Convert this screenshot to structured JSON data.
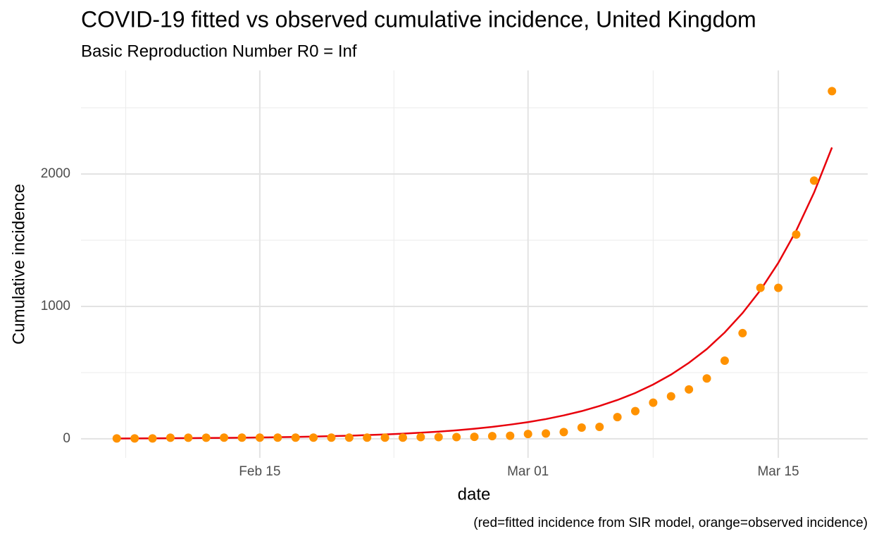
{
  "chart_data": {
    "type": "line",
    "title": "COVID-19 fitted vs observed cumulative incidence, United Kingdom",
    "subtitle": "Basic Reproduction Number R0 = Inf",
    "x_label": "date",
    "y_label": "Cumulative incidence",
    "caption": "(red=fitted incidence from SIR model, orange=observed incidence)",
    "x": [
      "Feb 07",
      "Feb 08",
      "Feb 09",
      "Feb 10",
      "Feb 11",
      "Feb 12",
      "Feb 13",
      "Feb 14",
      "Feb 15",
      "Feb 16",
      "Feb 17",
      "Feb 18",
      "Feb 19",
      "Feb 20",
      "Feb 21",
      "Feb 22",
      "Feb 23",
      "Feb 24",
      "Feb 25",
      "Feb 26",
      "Feb 27",
      "Feb 28",
      "Feb 29",
      "Mar 01",
      "Mar 02",
      "Mar 03",
      "Mar 04",
      "Mar 05",
      "Mar 06",
      "Mar 07",
      "Mar 08",
      "Mar 09",
      "Mar 10",
      "Mar 11",
      "Mar 12",
      "Mar 13",
      "Mar 14",
      "Mar 15",
      "Mar 16",
      "Mar 17",
      "Mar 18"
    ],
    "xticks": [
      "Feb 15",
      "Mar 01",
      "Mar 15"
    ],
    "ylim": [
      -144,
      2782
    ],
    "yticks": [
      0,
      1000,
      2000
    ],
    "grid": true,
    "series": [
      {
        "type": "line",
        "color": "#e8000b",
        "values": [
          2.6,
          3.1,
          3.7,
          4.3,
          5.1,
          6.1,
          7.2,
          8.5,
          10,
          12,
          14,
          17,
          20,
          23.6,
          28,
          33,
          39,
          46,
          54,
          64,
          76,
          90,
          107,
          126,
          149,
          177,
          209,
          248,
          293,
          346,
          410,
          485,
          574,
          678,
          803,
          950,
          1123,
          1329,
          1572,
          1860,
          2200
        ]
      },
      {
        "type": "scatter",
        "color": "#ff9200",
        "values": [
          3,
          3,
          3,
          8,
          8,
          8,
          9,
          9,
          9,
          9,
          9,
          9,
          9,
          9,
          9,
          9,
          9,
          13,
          13,
          13,
          15,
          20,
          23,
          36,
          40,
          51,
          85,
          90,
          164,
          209,
          273,
          321,
          373,
          456,
          590,
          798,
          1140,
          1140,
          1543,
          1950,
          2626
        ]
      }
    ]
  }
}
